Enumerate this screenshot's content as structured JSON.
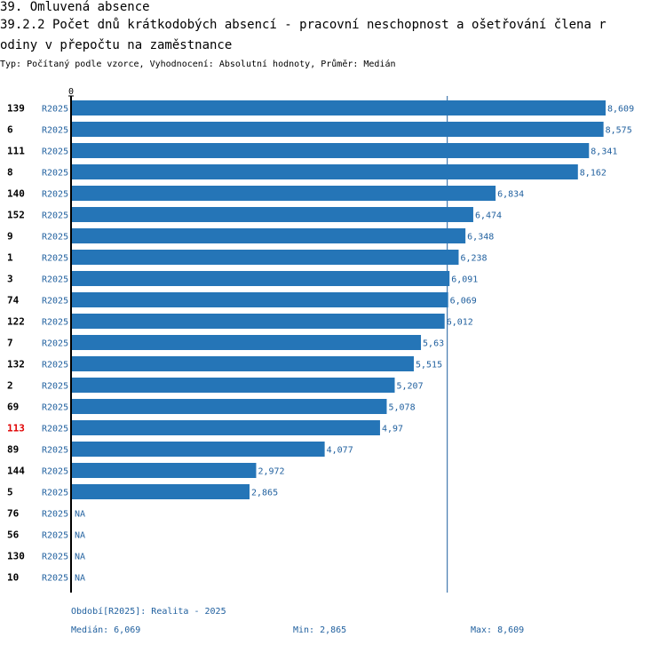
{
  "header": {
    "title_line1": "39. Omluvená absence",
    "title_line2": "39.2.2 Počet dnů krátkodobých absencí - pracovní neschopnost a ošetřování člena r",
    "title_line3": "odiny v přepočtu na zaměstnance",
    "subtitle": "Typ: Počítaný podle vzorce, Vyhodnocení: Absolutní hodnoty, Průměr: Medián"
  },
  "colors": {
    "bar": "#2575b7",
    "value_label": "#1f5f9e",
    "highlight_label": "#e00000",
    "axis": "#000000",
    "median_line": "#1f5f9e"
  },
  "chart_data": {
    "type": "bar",
    "orientation": "horizontal",
    "axis_zero_label": "0",
    "xlim": [
      0,
      8.609
    ],
    "median": 6.069,
    "highlight_category": "113",
    "period_code": "R2025",
    "rows": [
      {
        "id": "139",
        "period": "R2025",
        "value": 8.609,
        "label": "8,609"
      },
      {
        "id": "6",
        "period": "R2025",
        "value": 8.575,
        "label": "8,575"
      },
      {
        "id": "111",
        "period": "R2025",
        "value": 8.341,
        "label": "8,341"
      },
      {
        "id": "8",
        "period": "R2025",
        "value": 8.162,
        "label": "8,162"
      },
      {
        "id": "140",
        "period": "R2025",
        "value": 6.834,
        "label": "6,834"
      },
      {
        "id": "152",
        "period": "R2025",
        "value": 6.474,
        "label": "6,474"
      },
      {
        "id": "9",
        "period": "R2025",
        "value": 6.348,
        "label": "6,348"
      },
      {
        "id": "1",
        "period": "R2025",
        "value": 6.238,
        "label": "6,238"
      },
      {
        "id": "3",
        "period": "R2025",
        "value": 6.091,
        "label": "6,091"
      },
      {
        "id": "74",
        "period": "R2025",
        "value": 6.069,
        "label": "6,069"
      },
      {
        "id": "122",
        "period": "R2025",
        "value": 6.012,
        "label": "6,012"
      },
      {
        "id": "7",
        "period": "R2025",
        "value": 5.63,
        "label": "5,63"
      },
      {
        "id": "132",
        "period": "R2025",
        "value": 5.515,
        "label": "5,515"
      },
      {
        "id": "2",
        "period": "R2025",
        "value": 5.207,
        "label": "5,207"
      },
      {
        "id": "69",
        "period": "R2025",
        "value": 5.078,
        "label": "5,078"
      },
      {
        "id": "113",
        "period": "R2025",
        "value": 4.97,
        "label": "4,97"
      },
      {
        "id": "89",
        "period": "R2025",
        "value": 4.077,
        "label": "4,077"
      },
      {
        "id": "144",
        "period": "R2025",
        "value": 2.972,
        "label": "2,972"
      },
      {
        "id": "5",
        "period": "R2025",
        "value": 2.865,
        "label": "2,865"
      },
      {
        "id": "76",
        "period": "R2025",
        "value": null,
        "label": "NA"
      },
      {
        "id": "56",
        "period": "R2025",
        "value": null,
        "label": "NA"
      },
      {
        "id": "130",
        "period": "R2025",
        "value": null,
        "label": "NA"
      },
      {
        "id": "10",
        "period": "R2025",
        "value": null,
        "label": "NA"
      }
    ]
  },
  "footer": {
    "period": "Období[R2025]: Realita - 2025",
    "median": "Medián: 6,069",
    "min": "Min: 2,865",
    "max": "Max: 8,609"
  }
}
